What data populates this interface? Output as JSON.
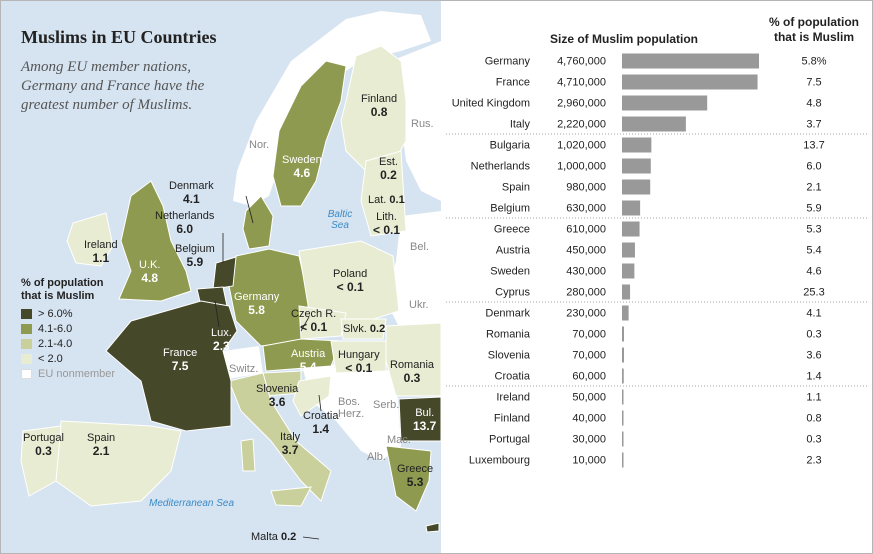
{
  "title": "Muslims in EU Countries",
  "subtitle": "Among EU member nations, Germany and France have the greatest number of Muslims.",
  "map": {
    "country_labels": [
      {
        "name": "Germany",
        "value": "5.8"
      },
      {
        "name": "France",
        "value": "7.5"
      },
      {
        "name": "U.K.",
        "value": "4.8"
      },
      {
        "name": "Sweden",
        "value": "4.6"
      },
      {
        "name": "Finland",
        "value": "0.8"
      },
      {
        "name": "Est.",
        "value": "0.2"
      },
      {
        "name": "Lat.",
        "value": "0.1"
      },
      {
        "name": "Lith.",
        "value": "< 0.1"
      },
      {
        "name": "Denmark",
        "value": "4.1"
      },
      {
        "name": "Netherlands",
        "value": "6.0"
      },
      {
        "name": "Belgium",
        "value": "5.9"
      },
      {
        "name": "Ireland",
        "value": "1.1"
      },
      {
        "name": "Poland",
        "value": "< 0.1"
      },
      {
        "name": "Czech R.",
        "value": "< 0.1"
      },
      {
        "name": "Slvk.",
        "value": "0.2"
      },
      {
        "name": "Lux.",
        "value": "2.3"
      },
      {
        "name": "Austria",
        "value": "5.4"
      },
      {
        "name": "Hungary",
        "value": "< 0.1"
      },
      {
        "name": "Romania",
        "value": "0.3"
      },
      {
        "name": "Slovenia",
        "value": "3.6"
      },
      {
        "name": "Croatia",
        "value": "1.4"
      },
      {
        "name": "Italy",
        "value": "3.7"
      },
      {
        "name": "Bul.",
        "value": "13.7"
      },
      {
        "name": "Greece",
        "value": "5.3"
      },
      {
        "name": "Portugal",
        "value": "0.3"
      },
      {
        "name": "Spain",
        "value": "2.1"
      },
      {
        "name": "Malta",
        "value": "0.2"
      }
    ],
    "nonmember_labels": [
      "Nor.",
      "Rus.",
      "Bel.",
      "Ukr.",
      "Switz.",
      "Bos. Herz.",
      "Serb.",
      "Mac.",
      "Alb."
    ],
    "sea_labels": [
      "Baltic Sea",
      "Mediterranean Sea"
    ],
    "colors": {
      "gt6": "#46482a",
      "c4to6": "#8e9a4f",
      "c2to4": "#c9d09c",
      "lt2": "#e8ecd2",
      "nonmember": "#ffffff",
      "water": "#d6e3f0"
    }
  },
  "legend": {
    "title_line1": "% of population",
    "title_line2": "that is Muslim",
    "items": [
      {
        "label": "> 6.0%",
        "color": "#46482a"
      },
      {
        "label": "4.1-6.0",
        "color": "#8e9a4f"
      },
      {
        "label": "2.1-4.0",
        "color": "#c9d09c"
      },
      {
        "label": "< 2.0",
        "color": "#e8ecd2"
      },
      {
        "label": "EU nonmember",
        "color": "#ffffff"
      }
    ]
  },
  "chart_data": {
    "type": "bar",
    "orientation": "horizontal",
    "header_size": "Size of Muslim population",
    "header_pct_line1": "% of population",
    "header_pct_line2": "that is Muslim",
    "categories": [
      "Germany",
      "France",
      "United Kingdom",
      "Italy",
      "Bulgaria",
      "Netherlands",
      "Spain",
      "Belgium",
      "Greece",
      "Austria",
      "Sweden",
      "Cyprus",
      "Denmark",
      "Romania",
      "Slovenia",
      "Croatia",
      "Ireland",
      "Finland",
      "Portugal",
      "Luxembourg"
    ],
    "values": [
      4760000,
      4710000,
      2960000,
      2220000,
      1020000,
      1000000,
      980000,
      630000,
      610000,
      450000,
      430000,
      280000,
      230000,
      70000,
      70000,
      60000,
      50000,
      40000,
      30000,
      10000
    ],
    "value_labels": [
      "4,760,000",
      "4,710,000",
      "2,960,000",
      "2,220,000",
      "1,020,000",
      "1,000,000",
      "980,000",
      "630,000",
      "610,000",
      "450,000",
      "430,000",
      "280,000",
      "230,000",
      "70,000",
      "70,000",
      "60,000",
      "50,000",
      "40,000",
      "30,000",
      "10,000"
    ],
    "percent_labels": [
      "5.8%",
      "7.5",
      "4.8",
      "3.7",
      "13.7",
      "6.0",
      "2.1",
      "5.9",
      "5.3",
      "5.4",
      "4.6",
      "25.3",
      "4.1",
      "0.3",
      "3.6",
      "1.4",
      "1.1",
      "0.8",
      "0.3",
      "2.3"
    ],
    "bar_color": "#999999",
    "xlim": [
      0,
      4760000
    ]
  }
}
